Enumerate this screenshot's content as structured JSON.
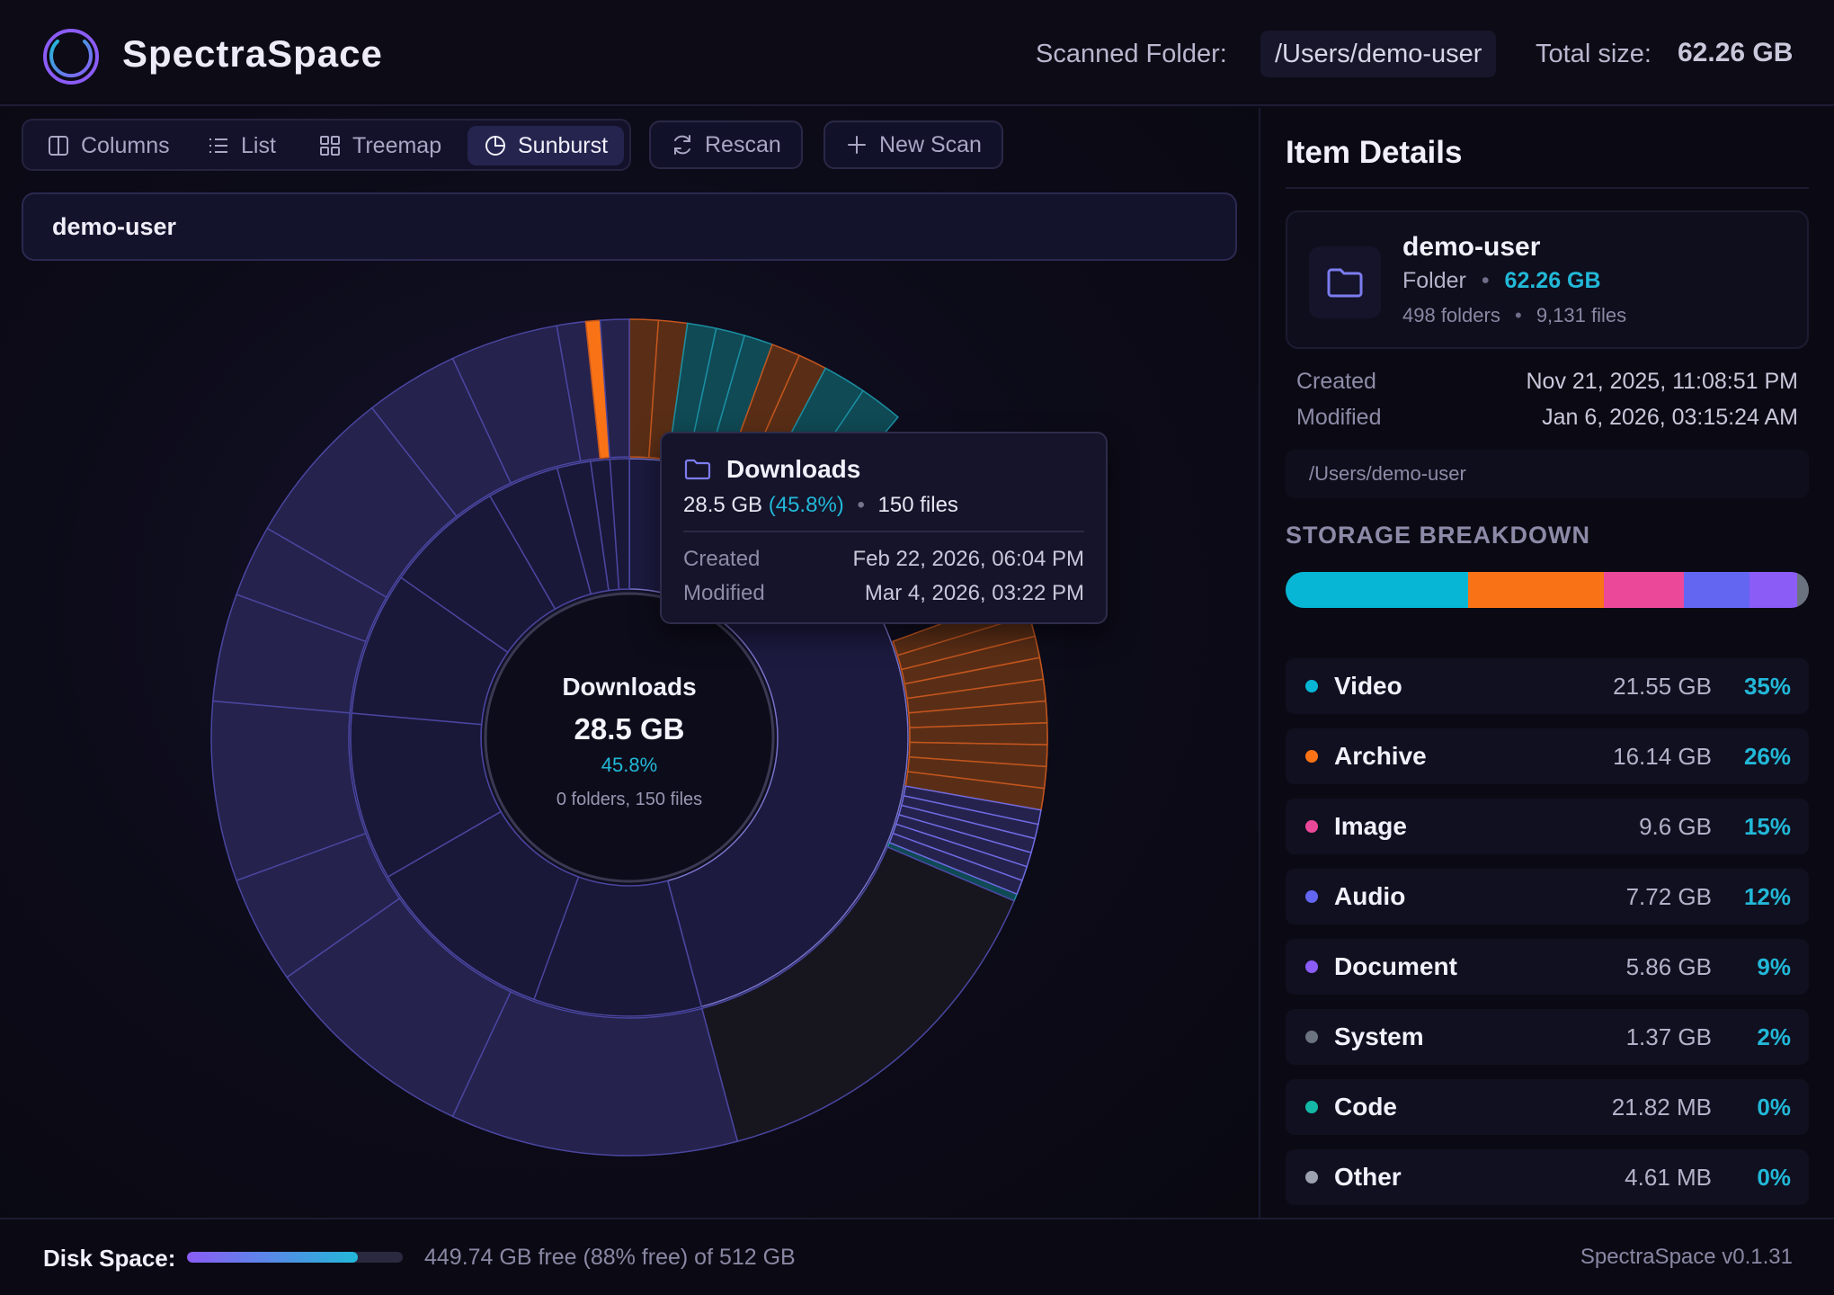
{
  "header": {
    "app_title": "SpectraSpace",
    "scanned_label": "Scanned Folder:",
    "scanned_path": "/Users/demo-user",
    "total_label": "Total size:",
    "total_value": "62.26 GB"
  },
  "toolbar": {
    "views": [
      {
        "label": "Columns",
        "icon": "columns-icon",
        "active": false
      },
      {
        "label": "List",
        "icon": "list-icon",
        "active": false
      },
      {
        "label": "Treemap",
        "icon": "treemap-icon",
        "active": false
      },
      {
        "label": "Sunburst",
        "icon": "sunburst-icon",
        "active": true
      }
    ],
    "rescan_label": "Rescan",
    "new_scan_label": "New Scan"
  },
  "breadcrumb": {
    "current": "demo-user"
  },
  "center": {
    "name": "Downloads",
    "size": "28.5 GB",
    "pct": "45.8%",
    "counts": "0 folders, 150 files"
  },
  "tooltip": {
    "name": "Downloads",
    "size": "28.5 GB",
    "pct": "(45.8%)",
    "files": "150 files",
    "created_label": "Created",
    "created_value": "Feb 22, 2026, 06:04 PM",
    "modified_label": "Modified",
    "modified_value": "Mar 4, 2026, 03:22 PM"
  },
  "details": {
    "title": "Item Details",
    "name": "demo-user",
    "type": "Folder",
    "size": "62.26 GB",
    "folders": "498 folders",
    "files": "9,131 files",
    "created_label": "Created",
    "created_value": "Nov 21, 2025, 11:08:51 PM",
    "modified_label": "Modified",
    "modified_value": "Jan 6, 2026, 03:15:24 AM",
    "path": "/Users/demo-user"
  },
  "breakdown": {
    "title": "STORAGE BREAKDOWN",
    "items": [
      {
        "name": "Video",
        "size": "21.55 GB",
        "pct": "35%",
        "color": "#06b6d4",
        "fraction": 0.35
      },
      {
        "name": "Archive",
        "size": "16.14 GB",
        "pct": "26%",
        "color": "#f97316",
        "fraction": 0.26
      },
      {
        "name": "Image",
        "size": "9.6 GB",
        "pct": "15%",
        "color": "#ec4899",
        "fraction": 0.155
      },
      {
        "name": "Audio",
        "size": "7.72 GB",
        "pct": "12%",
        "color": "#6366f1",
        "fraction": 0.125
      },
      {
        "name": "Document",
        "size": "5.86 GB",
        "pct": "9%",
        "color": "#8b5cf6",
        "fraction": 0.092
      },
      {
        "name": "System",
        "size": "1.37 GB",
        "pct": "2%",
        "color": "#6b7280",
        "fraction": 0.022
      },
      {
        "name": "Code",
        "size": "21.82 MB",
        "pct": "0%",
        "color": "#14b8a6",
        "fraction": 0
      },
      {
        "name": "Other",
        "size": "4.61 MB",
        "pct": "0%",
        "color": "#9ca3af",
        "fraction": 0
      }
    ]
  },
  "footer": {
    "disk_label": "Disk Space:",
    "disk_fraction": 0.88,
    "disk_text": "449.74 GB free (88% free) of 512 GB",
    "version": "SpectraSpace v0.1.31"
  },
  "colors": {
    "accent": "#22b8d8",
    "purple": "#6c5ce7",
    "segment_purple": "#25224d",
    "segment_orange": "#5a2e16",
    "segment_teal": "#0f4a55"
  }
}
